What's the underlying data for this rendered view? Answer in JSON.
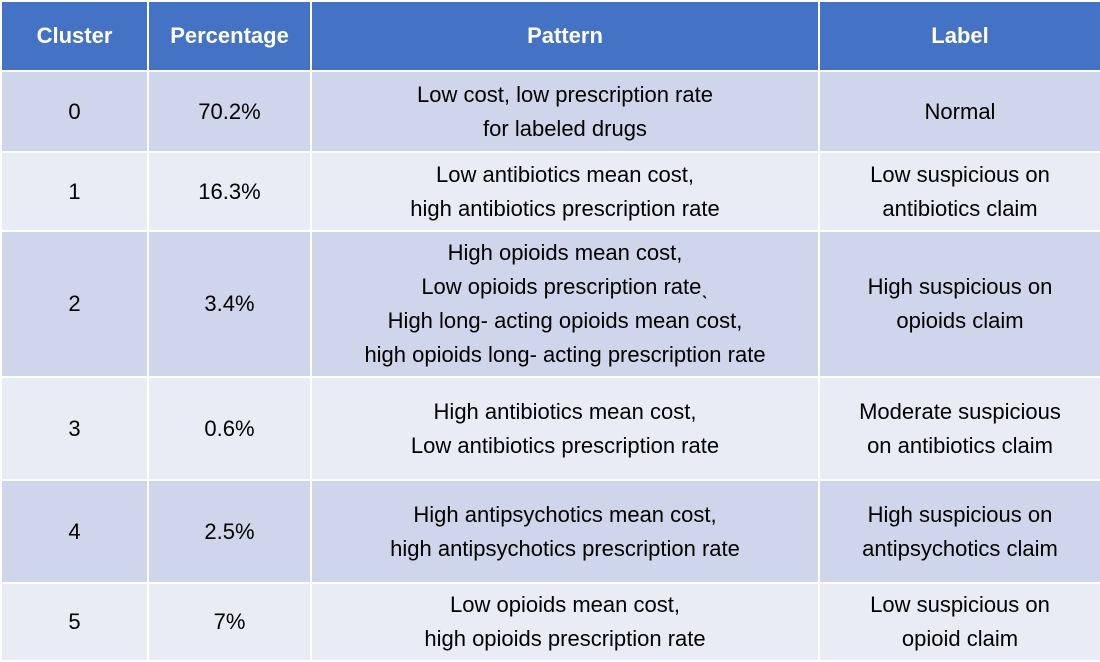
{
  "table": {
    "headers": [
      "Cluster",
      "Percentage",
      "Pattern",
      "Label"
    ],
    "rows": [
      {
        "cluster": "0",
        "percentage": "70.2%",
        "pattern": [
          "Low cost, low prescription rate",
          "for labeled drugs"
        ],
        "label": [
          "Normal"
        ]
      },
      {
        "cluster": "1",
        "percentage": "16.3%",
        "pattern": [
          "Low antibiotics mean cost,",
          "high antibiotics prescription rate"
        ],
        "label": [
          "Low suspicious on",
          "antibiotics claim"
        ]
      },
      {
        "cluster": "2",
        "percentage": "3.4%",
        "pattern": [
          "High opioids mean cost,",
          "Low opioids prescription rateˎ",
          "High long- acting opioids mean cost,",
          "high opioids long- acting prescription rate"
        ],
        "label": [
          "High suspicious on",
          "opioids claim"
        ]
      },
      {
        "cluster": "3",
        "percentage": "0.6%",
        "pattern": [
          "High antibiotics mean cost,",
          "Low antibiotics prescription rate"
        ],
        "label": [
          "Moderate suspicious",
          "on antibiotics claim"
        ]
      },
      {
        "cluster": "4",
        "percentage": "2.5%",
        "pattern": [
          "High antipsychotics mean cost,",
          "high antipsychotics prescription rate"
        ],
        "label": [
          "High suspicious on",
          "antipsychotics claim"
        ]
      },
      {
        "cluster": "5",
        "percentage": "7%",
        "pattern": [
          "Low opioids mean cost,",
          "high opioids prescription rate"
        ],
        "label": [
          "Low suspicious on",
          "opioid claim"
        ]
      }
    ]
  }
}
